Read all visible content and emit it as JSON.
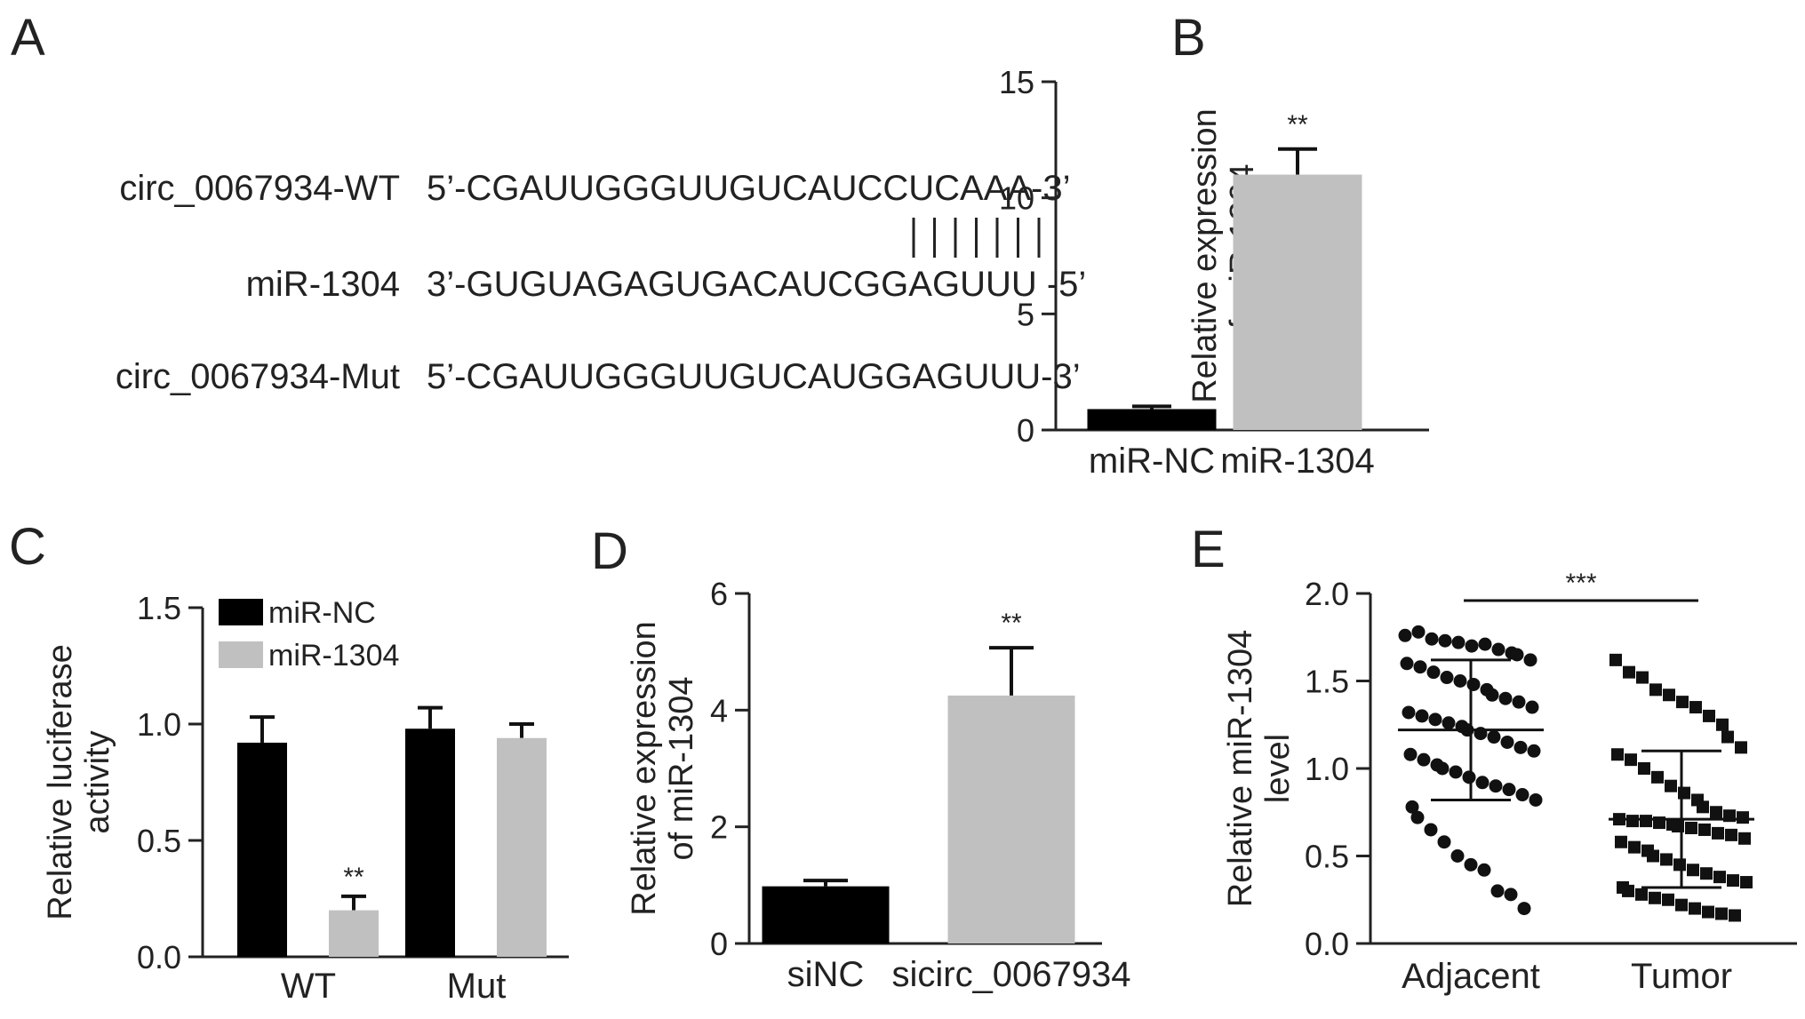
{
  "panel_labels": {
    "a": "A",
    "b": "B",
    "c": "C",
    "d": "D",
    "e": "E"
  },
  "panel_a": {
    "rows": [
      {
        "label": "circ_0067934-WT",
        "sequence": "5’-CGAUUGGGUUGUCAUCCUCAAA-3’"
      },
      {
        "label": "miR-1304",
        "sequence": "3’-GUGUAGAGUGACAUCGGAGUUU -5’"
      },
      {
        "label": "circ_0067934-Mut",
        "sequence": "5’-CGAUUGGGUUGUCAUGGAGUUU-3’"
      }
    ],
    "pairing_lines": 7
  },
  "chart_data": [
    {
      "panel": "B",
      "type": "bar",
      "categories": [
        "miR-NC",
        "miR-1304"
      ],
      "values": [
        0.9,
        11.0
      ],
      "errors": [
        0.12,
        1.1
      ],
      "colors": [
        "#000000",
        "#c0c0c0"
      ],
      "ylabel": [
        "Relative expression",
        "of miR-1304"
      ],
      "ylim": [
        0,
        15
      ],
      "yticks": [
        "0",
        "5",
        "10",
        "15"
      ],
      "significance": [
        "",
        "**"
      ]
    },
    {
      "panel": "C",
      "type": "bar",
      "categories": [
        "WT",
        "Mut"
      ],
      "series": [
        {
          "name": "miR-NC",
          "values": [
            0.92,
            0.98
          ],
          "errors": [
            0.11,
            0.09
          ],
          "color": "#000000"
        },
        {
          "name": "miR-1304",
          "values": [
            0.2,
            0.94
          ],
          "errors": [
            0.06,
            0.06
          ],
          "color": "#c0c0c0"
        }
      ],
      "ylabel": [
        "Relative luciferase",
        "activity"
      ],
      "ylim": [
        0,
        1.5
      ],
      "yticks": [
        "0.0",
        "0.5",
        "1.0",
        "1.5"
      ],
      "significance": [
        [
          "",
          "**"
        ],
        [
          "",
          ""
        ]
      ],
      "legend": "top-left"
    },
    {
      "panel": "D",
      "type": "bar",
      "categories": [
        "siNC",
        "sicirc_0067934"
      ],
      "values": [
        0.98,
        4.25
      ],
      "errors": [
        0.1,
        0.82
      ],
      "colors": [
        "#000000",
        "#c0c0c0"
      ],
      "ylabel": [
        "Relative expression",
        "of miR-1304"
      ],
      "ylim": [
        0,
        6
      ],
      "yticks": [
        "0",
        "2",
        "4",
        "6"
      ],
      "significance": [
        "",
        "**"
      ]
    },
    {
      "panel": "E",
      "type": "scatter",
      "categories": [
        "Adjacent",
        "Tumor"
      ],
      "ylabel": [
        "Relative miR-1304",
        "level"
      ],
      "ylim": [
        0,
        2.0
      ],
      "yticks": [
        "0.0",
        "0.5",
        "1.0",
        "1.5",
        "2.0"
      ],
      "significance": "***",
      "groups": [
        {
          "name": "Adjacent",
          "marker": "circle",
          "mean": 1.22,
          "sd_low": 0.82,
          "sd_high": 1.62,
          "points": [
            1.76,
            1.78,
            1.74,
            1.73,
            1.72,
            1.7,
            1.71,
            1.68,
            1.66,
            1.65,
            1.62,
            1.6,
            1.58,
            1.55,
            1.52,
            1.5,
            1.48,
            1.45,
            1.42,
            1.4,
            1.38,
            1.35,
            1.32,
            1.3,
            1.28,
            1.26,
            1.24,
            1.22,
            1.2,
            1.18,
            1.15,
            1.12,
            1.1,
            1.08,
            1.05,
            1.02,
            1.0,
            0.98,
            0.95,
            0.92,
            0.9,
            0.88,
            0.85,
            0.82,
            0.78,
            0.72,
            0.65,
            0.58,
            0.5,
            0.45,
            0.42,
            0.3,
            0.28,
            0.2
          ]
        },
        {
          "name": "Tumor",
          "marker": "square",
          "mean": 0.71,
          "sd_low": 0.32,
          "sd_high": 1.1,
          "points": [
            1.62,
            1.55,
            1.52,
            1.45,
            1.42,
            1.38,
            1.35,
            1.3,
            1.25,
            1.18,
            1.12,
            1.08,
            1.05,
            1.0,
            0.95,
            0.9,
            0.86,
            0.82,
            0.78,
            0.75,
            0.73,
            0.72,
            0.71,
            0.7,
            0.7,
            0.69,
            0.68,
            0.67,
            0.66,
            0.65,
            0.63,
            0.62,
            0.6,
            0.58,
            0.55,
            0.53,
            0.5,
            0.48,
            0.45,
            0.42,
            0.4,
            0.38,
            0.36,
            0.35,
            0.32,
            0.3,
            0.28,
            0.26,
            0.25,
            0.22,
            0.2,
            0.18,
            0.17,
            0.16
          ]
        }
      ]
    }
  ]
}
